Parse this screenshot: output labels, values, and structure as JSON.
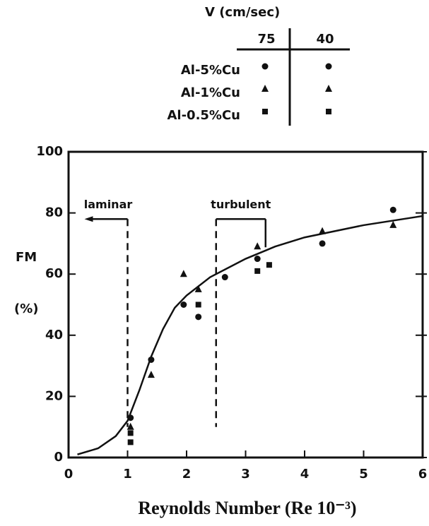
{
  "chart_data": {
    "type": "scatter",
    "x_label": "Reynolds Number (Re 10⁻³)",
    "y_label": "FM",
    "y_unit": "(%)",
    "xlim": [
      0,
      6
    ],
    "xticks": [
      0,
      1,
      2,
      3,
      4,
      5,
      6
    ],
    "ylim": [
      0,
      100
    ],
    "yticks": [
      0,
      20,
      40,
      60,
      80,
      100
    ],
    "color": "#111111",
    "legend": {
      "title": "V (cm/sec)",
      "columns": [
        "75",
        "40"
      ]
    },
    "series": [
      {
        "name": "Al-5%Cu",
        "marker": "circle",
        "x": [
          1.05,
          1.4,
          1.95,
          2.2,
          2.65,
          3.2,
          4.3,
          5.5
        ],
        "values": [
          13,
          32,
          50,
          46,
          59,
          65,
          70,
          81
        ]
      },
      {
        "name": "Al-1%Cu",
        "marker": "triangle",
        "x": [
          1.05,
          1.4,
          1.95,
          2.2,
          3.2,
          4.3,
          5.5
        ],
        "values": [
          10,
          27,
          60,
          55,
          69,
          74,
          76
        ]
      },
      {
        "name": "Al-0.5%Cu",
        "marker": "square",
        "x": [
          1.05,
          1.05,
          2.2,
          3.2,
          3.4
        ],
        "values": [
          8,
          5,
          50,
          61,
          63
        ]
      }
    ],
    "fit_curve": {
      "x": [
        0.15,
        0.5,
        0.8,
        1.0,
        1.2,
        1.4,
        1.6,
        1.8,
        2.0,
        2.4,
        3.0,
        3.5,
        4.0,
        5.0,
        6.0
      ],
      "values": [
        1,
        3,
        7,
        12,
        22,
        33,
        42,
        49,
        53,
        59,
        65,
        69,
        72,
        76,
        79
      ]
    },
    "regions": [
      {
        "label": "laminar",
        "boundary": 1.0,
        "level": 78,
        "direction": "left"
      },
      {
        "label": "turbulent",
        "boundary": 2.5,
        "level": 78,
        "direction": "right"
      }
    ]
  }
}
